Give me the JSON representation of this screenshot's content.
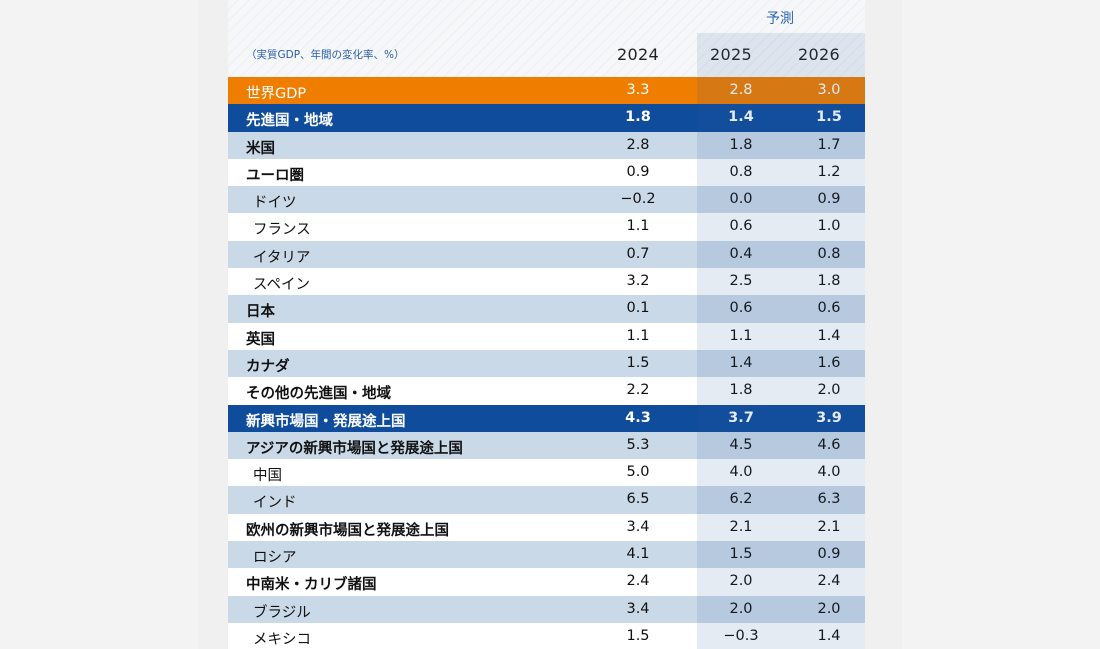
{
  "chart_data": {
    "type": "table",
    "forecast_label": "予測",
    "unit_label": "（実質GDP、年間の変化率、%）",
    "columns": [
      "2024",
      "2025",
      "2026"
    ],
    "forecast_columns": [
      "2025",
      "2026"
    ],
    "rows": [
      {
        "label": "世界GDP",
        "kind": "world",
        "values": [
          "3.3",
          "2.8",
          "3.0"
        ]
      },
      {
        "label": "先進国・地域",
        "kind": "group",
        "values": [
          "1.8",
          "1.4",
          "1.5"
        ]
      },
      {
        "label": "米国",
        "kind": "bold",
        "values": [
          "2.8",
          "1.8",
          "1.7"
        ]
      },
      {
        "label": "ユーロ圏",
        "kind": "bold",
        "values": [
          "0.9",
          "0.8",
          "1.2"
        ]
      },
      {
        "label": "ドイツ",
        "kind": "sub",
        "values": [
          "−0.2",
          "0.0",
          "0.9"
        ]
      },
      {
        "label": "フランス",
        "kind": "sub",
        "values": [
          "1.1",
          "0.6",
          "1.0"
        ]
      },
      {
        "label": "イタリア",
        "kind": "sub",
        "values": [
          "0.7",
          "0.4",
          "0.8"
        ]
      },
      {
        "label": "スペイン",
        "kind": "sub",
        "values": [
          "3.2",
          "2.5",
          "1.8"
        ]
      },
      {
        "label": "日本",
        "kind": "bold",
        "values": [
          "0.1",
          "0.6",
          "0.6"
        ]
      },
      {
        "label": "英国",
        "kind": "bold",
        "values": [
          "1.1",
          "1.1",
          "1.4"
        ]
      },
      {
        "label": "カナダ",
        "kind": "bold",
        "values": [
          "1.5",
          "1.4",
          "1.6"
        ]
      },
      {
        "label": "その他の先進国・地域",
        "kind": "bold",
        "values": [
          "2.2",
          "1.8",
          "2.0"
        ]
      },
      {
        "label": "新興市場国・発展途上国",
        "kind": "group",
        "values": [
          "4.3",
          "3.7",
          "3.9"
        ]
      },
      {
        "label": "アジアの新興市場国と発展途上国",
        "kind": "bold",
        "values": [
          "5.3",
          "4.5",
          "4.6"
        ]
      },
      {
        "label": "中国",
        "kind": "sub",
        "values": [
          "5.0",
          "4.0",
          "4.0"
        ]
      },
      {
        "label": "インド",
        "kind": "sub",
        "values": [
          "6.5",
          "6.2",
          "6.3"
        ]
      },
      {
        "label": "欧州の新興市場国と発展途上国",
        "kind": "bold",
        "values": [
          "3.4",
          "2.1",
          "2.1"
        ]
      },
      {
        "label": "ロシア",
        "kind": "sub",
        "values": [
          "4.1",
          "1.5",
          "0.9"
        ]
      },
      {
        "label": "中南米・カリブ諸国",
        "kind": "bold",
        "values": [
          "2.4",
          "2.0",
          "2.4"
        ]
      },
      {
        "label": "ブラジル",
        "kind": "sub",
        "values": [
          "3.4",
          "2.0",
          "2.0"
        ]
      },
      {
        "label": "メキシコ",
        "kind": "sub",
        "values": [
          "1.5",
          "−0.3",
          "1.4"
        ]
      }
    ]
  },
  "colors": {
    "world": "#ee7d00",
    "group": "#0f4d9c",
    "stripe": "#cad9e8",
    "accent_text": "#2f67b1"
  }
}
